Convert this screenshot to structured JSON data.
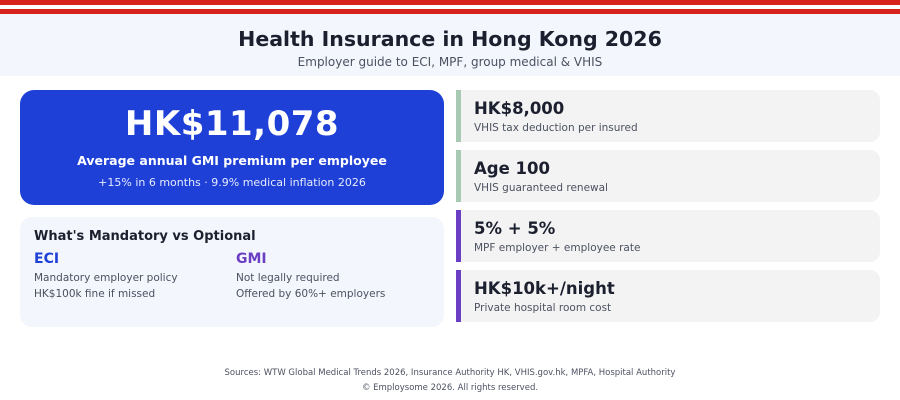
{
  "header": {
    "title": "Health Insurance in Hong Kong 2026",
    "subtitle": "Employer guide to ECI, MPF, group medical & VHIS"
  },
  "hero": {
    "value": "HK$11,078",
    "label": "Average annual GMI premium per employee",
    "note": "+15% in 6 months  ·  9.9% medical inflation 2026",
    "color": "#1e40d6"
  },
  "comparison": {
    "title": "What's Mandatory vs Optional",
    "columns": [
      {
        "heading": "ECI",
        "lines": [
          "Mandatory employer policy",
          "HK$100k fine if missed"
        ],
        "color": "#1e40d6"
      },
      {
        "heading": "GMI",
        "lines": [
          "Not legally required",
          "Offered by 60%+ employers"
        ],
        "color": "#6b3fc4"
      }
    ]
  },
  "stats": [
    {
      "value": "HK$8,000",
      "label": "VHIS tax deduction per insured",
      "accent": "#a8c9b3"
    },
    {
      "value": "Age 100",
      "label": "VHIS guaranteed renewal",
      "accent": "#a8c9b3"
    },
    {
      "value": "5% + 5%",
      "label": "MPF employer + employee rate",
      "accent": "#6b3fc4"
    },
    {
      "value": "HK$10k+/night",
      "label": "Private hospital room cost",
      "accent": "#6b3fc4"
    }
  ],
  "footer": {
    "sources": "Sources: WTW Global Medical Trends 2026, Insurance Authority HK, VHIS.gov.hk, MPFA, Hospital Authority",
    "copyright": "© Employsome 2026. All rights reserved."
  },
  "colors": {
    "stripe": "#d8231c",
    "background": "#f3f6fd"
  }
}
